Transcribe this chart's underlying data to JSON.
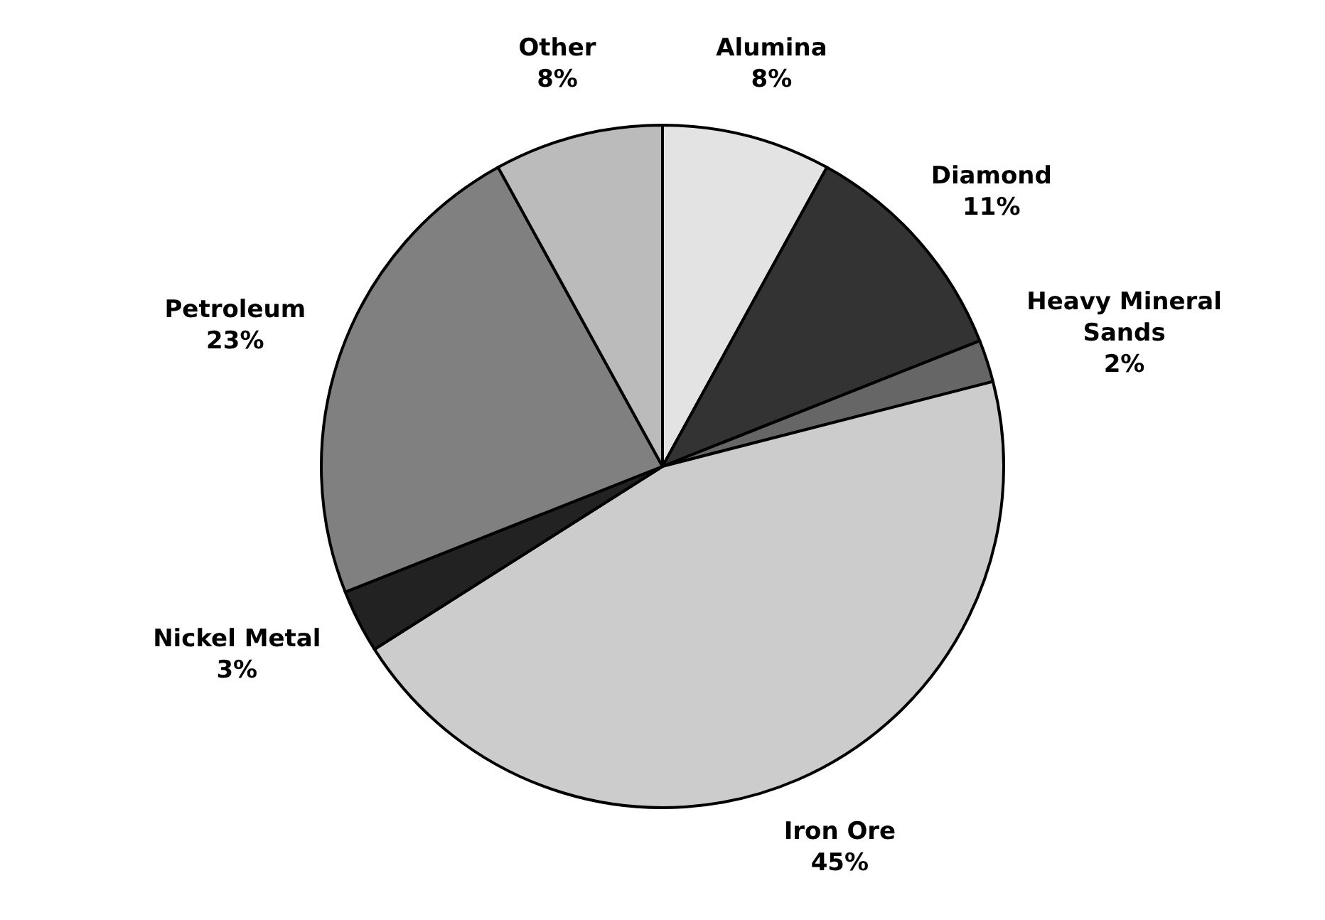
{
  "chart_data": {
    "type": "pie",
    "categories": [
      "Alumina",
      "Diamond",
      "Heavy Mineral Sands",
      "Iron Ore",
      "Nickel Metal",
      "Petroleum",
      "Other"
    ],
    "values": [
      8,
      11,
      2,
      45,
      3,
      23,
      8
    ],
    "value_labels": [
      "8%",
      "11%",
      "2%",
      "45%",
      "3%",
      "23%",
      "8%"
    ],
    "colors": [
      "#e3e3e3",
      "#333333",
      "#666666",
      "#cccccc",
      "#222222",
      "#808080",
      "#bbbbbb"
    ]
  }
}
